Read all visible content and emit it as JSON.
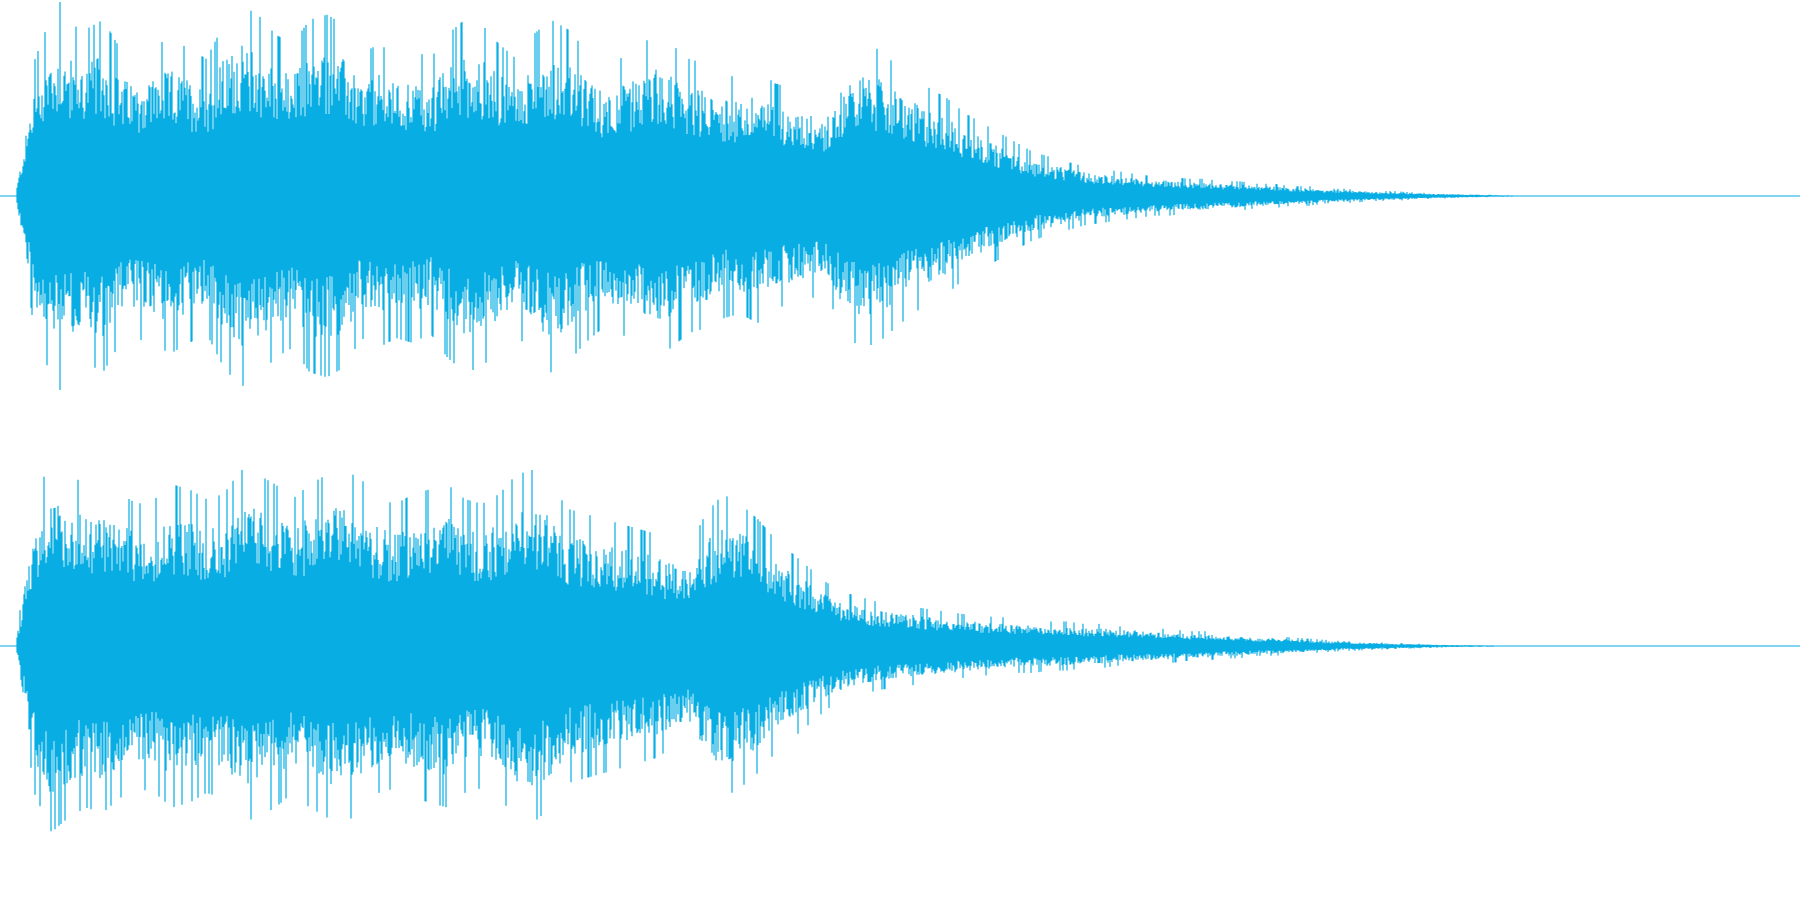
{
  "waveform": {
    "color": "#07ADE3",
    "channels": [
      {
        "name": "",
        "envelope": [
          0.05,
          0.55,
          0.74,
          0.7,
          0.68,
          0.72,
          0.6,
          0.58,
          0.62,
          0.64,
          0.6,
          0.56,
          0.7,
          0.78,
          0.74,
          0.66,
          0.62,
          0.72,
          0.74,
          0.7,
          0.58,
          0.62,
          0.58,
          0.6,
          0.56,
          0.66,
          0.72,
          0.7,
          0.62,
          0.56,
          0.66,
          0.72,
          0.68,
          0.6,
          0.54,
          0.56,
          0.6,
          0.66,
          0.62,
          0.56,
          0.54,
          0.5,
          0.48,
          0.52,
          0.46,
          0.44,
          0.42,
          0.4,
          0.56,
          0.62,
          0.6,
          0.54,
          0.48,
          0.44,
          0.4,
          0.34,
          0.3,
          0.26,
          0.22,
          0.18,
          0.16,
          0.14,
          0.12,
          0.11,
          0.1,
          0.09,
          0.08,
          0.08,
          0.07,
          0.07,
          0.06,
          0.06,
          0.05,
          0.05,
          0.04,
          0.04,
          0.03,
          0.03,
          0.025,
          0.02,
          0.02,
          0.015,
          0.012,
          0.01,
          0.008,
          0.006,
          0.004,
          0.003
        ],
        "spike": 0.99
      },
      {
        "name": "",
        "envelope": [
          0.05,
          0.6,
          0.76,
          0.7,
          0.66,
          0.68,
          0.62,
          0.58,
          0.6,
          0.66,
          0.64,
          0.6,
          0.62,
          0.72,
          0.7,
          0.66,
          0.6,
          0.66,
          0.7,
          0.72,
          0.68,
          0.6,
          0.58,
          0.62,
          0.64,
          0.66,
          0.6,
          0.58,
          0.62,
          0.7,
          0.72,
          0.66,
          0.56,
          0.54,
          0.52,
          0.5,
          0.48,
          0.46,
          0.42,
          0.4,
          0.54,
          0.62,
          0.58,
          0.52,
          0.44,
          0.38,
          0.32,
          0.26,
          0.22,
          0.2,
          0.18,
          0.17,
          0.16,
          0.15,
          0.14,
          0.13,
          0.12,
          0.12,
          0.11,
          0.11,
          0.1,
          0.1,
          0.09,
          0.09,
          0.08,
          0.08,
          0.07,
          0.07,
          0.06,
          0.06,
          0.05,
          0.05,
          0.04,
          0.04,
          0.035,
          0.03,
          0.025,
          0.02,
          0.018,
          0.015,
          0.012,
          0.01,
          0.008,
          0.006,
          0.005,
          0.004,
          0.003,
          0.002
        ],
        "spike": 0.0
      }
    ]
  }
}
